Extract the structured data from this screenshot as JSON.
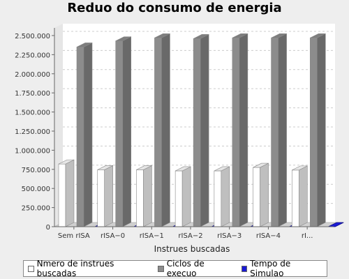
{
  "chart_data": {
    "type": "bar",
    "title": "Reduo do consumo de energia",
    "xlabel": "Instrues buscadas",
    "ylabel": "",
    "categories": [
      "Sem rISA",
      "rISA−0",
      "rISA−1",
      "rISA−2",
      "rISA−3",
      "rISA−4",
      "rI..."
    ],
    "series": [
      {
        "name": "Nmero de instrues buscadas",
        "color": "#ffffff",
        "values": [
          820000,
          745000,
          745000,
          730000,
          730000,
          775000,
          740000
        ]
      },
      {
        "name": "Ciclos de execuo",
        "color": "#8c8c8c",
        "values": [
          2350000,
          2430000,
          2470000,
          2460000,
          2470000,
          2470000,
          2470000
        ]
      },
      {
        "name": "Tempo de Simulao",
        "color": "#1a1ad6",
        "values": [
          0,
          0,
          0,
          0,
          0,
          0,
          0
        ]
      }
    ],
    "ylim": [
      0,
      2600000
    ],
    "yticks": [
      0,
      250000,
      500000,
      750000,
      1000000,
      1250000,
      1500000,
      1750000,
      2000000,
      2250000,
      2500000
    ],
    "ytick_labels": [
      "0",
      "250.000",
      "500.000",
      "750.000",
      "1.000.000",
      "1.250.000",
      "1.500.000",
      "1.750.000",
      "2.000.000",
      "2.250.000",
      "2.500.000"
    ],
    "grid": true,
    "legend_position": "bottom"
  }
}
